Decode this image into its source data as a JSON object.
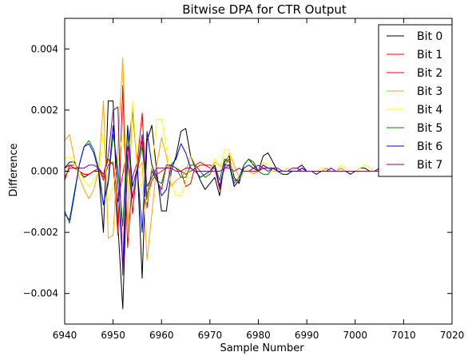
{
  "chart_data": {
    "type": "line",
    "title": "Bitwise DPA for CTR Output",
    "xlabel": "Sample Number",
    "ylabel": "Difference",
    "xlim": [
      6940,
      7020
    ],
    "ylim": [
      -0.005,
      0.005
    ],
    "xticks": [
      6940,
      6950,
      6960,
      6970,
      6980,
      6990,
      7000,
      7010,
      7020
    ],
    "xtick_labels": [
      "6940",
      "6950",
      "6960",
      "6970",
      "6980",
      "6990",
      "7000",
      "7010",
      "7020"
    ],
    "yticks": [
      -0.004,
      -0.002,
      0.0,
      0.002,
      0.004
    ],
    "ytick_labels": [
      "−0.004",
      "−0.002",
      "0.000",
      "0.002",
      "0.004"
    ],
    "grid": false,
    "legend_position": "top-right",
    "x": [
      6940,
      6941,
      6942,
      6943,
      6944,
      6945,
      6946,
      6947,
      6948,
      6949,
      6950,
      6951,
      6952,
      6953,
      6954,
      6955,
      6956,
      6957,
      6958,
      6959,
      6960,
      6961,
      6962,
      6963,
      6964,
      6965,
      6966,
      6967,
      6968,
      6969,
      6970,
      6971,
      6972,
      6973,
      6974,
      6975,
      6976,
      6977,
      6978,
      6979,
      6980,
      6981,
      6982,
      6983,
      6984,
      6985,
      6986,
      6987,
      6988,
      6989,
      6990,
      6991,
      6992,
      6993,
      6994,
      6995,
      6996,
      6997,
      6998,
      6999,
      7000,
      7001,
      7002,
      7003,
      7004,
      7005,
      7006,
      7007,
      7008,
      7009,
      7010,
      7011,
      7012,
      7013,
      7014,
      7015,
      7016,
      7017,
      7018,
      7019
    ],
    "series": [
      {
        "name": "Bit 0",
        "color": "#000000",
        "values": [
          0.0001,
          0.0003,
          0.0003,
          0.0,
          -0.0002,
          -0.0001,
          0.0,
          0.0,
          -0.002,
          0.0023,
          0.0023,
          -0.0018,
          -0.0045,
          0.0005,
          0.002,
          0.0002,
          -0.0035,
          0.001,
          0.0015,
          0.0,
          -0.0013,
          -0.0013,
          0.0,
          0.0005,
          0.0013,
          0.0014,
          0.0005,
          0.0001,
          -0.0003,
          -0.0006,
          -0.0004,
          -0.0002,
          -0.0008,
          0.0003,
          0.0005,
          -0.0002,
          -0.0004,
          0.0002,
          0.0004,
          0.0002,
          0.0,
          0.0005,
          0.0006,
          0.0003,
          0.0,
          -0.0001,
          -0.0001,
          0.0,
          0.0001,
          0.0002,
          0.0,
          0.0,
          -0.0001,
          0.0,
          0.0001,
          0.0,
          0.0,
          0.0001,
          0.0,
          -0.0001,
          0.0,
          0.0001,
          0.0001,
          0.0,
          0.0,
          0.0001,
          0.0,
          0.0,
          0.0,
          0.0001,
          0.0,
          0.0,
          0.0001,
          0.0,
          0.0,
          0.0,
          0.0,
          0.0001,
          0.0,
          0.0
        ]
      },
      {
        "name": "Bit 1",
        "color": "#ff0000",
        "values": [
          -0.0002,
          0.0001,
          0.0001,
          0.0,
          -0.0001,
          -0.0001,
          0.0,
          0.0001,
          -0.0002,
          0.0004,
          0.0002,
          -0.001,
          -0.0001,
          0.0008,
          -0.0014,
          0.0002,
          0.001,
          -0.0009,
          -0.0003,
          -0.0001,
          0.0,
          0.0001,
          0.0002,
          0.0001,
          0.0,
          -0.0001,
          0.0,
          0.0001,
          0.0002,
          0.0002,
          0.0002,
          0.0001,
          -0.0005,
          0.0001,
          0.0002,
          -0.0003,
          -0.0003,
          0.0,
          0.0,
          0.0,
          0.0,
          0.0001,
          0.0001,
          0.0001,
          0.0,
          0.0,
          0.0001,
          0.0,
          0.0,
          0.0,
          0.0,
          0.0,
          0.0,
          0.0,
          0.0,
          0.0,
          0.0,
          0.0,
          0.0,
          0.0,
          0.0,
          0.0,
          0.0,
          0.0,
          0.0,
          0.0,
          0.0,
          0.0,
          0.0,
          0.0,
          0.0,
          0.0,
          0.0,
          0.0,
          0.0,
          0.0,
          0.0,
          0.0,
          0.0,
          0.0
        ]
      },
      {
        "name": "Bit 2",
        "color": "#e60000",
        "values": [
          -0.0003,
          0.0002,
          0.0002,
          0.0,
          -0.0001,
          -0.0001,
          0.0,
          0.0001,
          -0.0003,
          0.0002,
          0.0003,
          -0.0021,
          0.0028,
          -0.0025,
          -0.0002,
          0.0003,
          0.0019,
          -0.0012,
          0.0001,
          -0.0003,
          -0.0006,
          0.0002,
          0.0002,
          0.0001,
          0.0,
          -0.0005,
          -0.0004,
          0.0002,
          0.0003,
          0.0002,
          0.0001,
          0.0001,
          -0.0006,
          0.0002,
          0.0004,
          -0.0005,
          -0.0003,
          0.0,
          0.0,
          0.0001,
          0.0,
          0.0001,
          0.0001,
          0.0001,
          0.0,
          0.0,
          0.0,
          0.0,
          0.0,
          0.0001,
          0.0,
          0.0,
          0.0,
          0.0,
          0.0,
          0.0,
          0.0,
          0.0,
          0.0,
          0.0,
          0.0,
          0.0,
          0.0,
          0.0,
          0.0,
          0.0,
          0.0,
          0.0,
          0.0,
          0.0,
          0.0,
          0.0,
          0.0,
          0.0,
          0.0,
          0.0,
          0.0,
          0.0,
          0.0,
          0.0
        ]
      },
      {
        "name": "Bit 3",
        "color": "#ffa500",
        "values": [
          0.001,
          0.0012,
          0.0004,
          -0.0002,
          -0.0006,
          -0.0009,
          -0.0006,
          0.0,
          0.0023,
          -0.0022,
          -0.0021,
          0.0008,
          0.0037,
          -0.002,
          0.0022,
          0.0,
          0.0003,
          -0.0029,
          -0.0014,
          0.0002,
          0.0011,
          0.0005,
          -0.0005,
          -0.0003,
          -0.0002,
          0.0,
          0.0005,
          0.0002,
          0.0,
          0.0,
          0.0,
          0.0003,
          0.0002,
          0.0001,
          0.0006,
          0.0002,
          -0.0002,
          0.0,
          0.0,
          -0.0001,
          0.0,
          0.0002,
          0.0001,
          0.0,
          0.0,
          0.0,
          0.0,
          0.0,
          0.0001,
          0.0,
          0.0,
          0.0,
          0.0,
          0.0,
          0.0001,
          0.0,
          0.0,
          0.0001,
          0.0,
          0.0,
          0.0,
          0.0,
          0.0,
          0.0,
          0.0,
          0.0,
          0.0,
          0.0,
          0.0,
          0.0,
          0.0,
          0.0,
          0.0,
          0.0,
          0.0,
          0.0,
          0.0,
          0.0,
          0.0,
          0.0
        ]
      },
      {
        "name": "Bit 4",
        "color": "#ffff00",
        "values": [
          0.0004,
          0.0005,
          0.0002,
          0.0,
          -0.0003,
          -0.0005,
          -0.0003,
          0.0,
          0.0012,
          -0.001,
          -0.0005,
          0.0004,
          0.0012,
          -0.0007,
          0.0023,
          0.0003,
          -0.0007,
          -0.001,
          0.0,
          0.0017,
          0.0017,
          0.0008,
          -0.0004,
          -0.0008,
          -0.0008,
          -0.0004,
          0.0002,
          0.0002,
          0.0,
          -0.0002,
          0.0,
          0.0004,
          0.0001,
          0.0007,
          0.0007,
          -0.0004,
          -0.0003,
          0.0,
          0.0001,
          0.0003,
          0.0,
          0.0003,
          0.0002,
          0.0001,
          0.0,
          0.0,
          0.0001,
          0.0,
          0.0001,
          0.0,
          0.0,
          0.0,
          0.0,
          0.0001,
          0.0,
          0.0001,
          0.0,
          0.0002,
          0.0001,
          0.0,
          0.0,
          0.0001,
          0.0002,
          0.0001,
          0.0,
          0.0,
          0.0,
          0.0,
          0.0001,
          0.0,
          0.0,
          0.0,
          0.0,
          0.0,
          0.0001,
          0.0,
          0.0,
          0.0,
          0.0,
          0.0
        ]
      },
      {
        "name": "Bit 5",
        "color": "#008000",
        "values": [
          -0.0013,
          -0.0017,
          -0.0008,
          0.0002,
          0.0008,
          0.001,
          0.0007,
          0.0001,
          -0.0011,
          -0.0004,
          0.0012,
          0.0001,
          -0.0018,
          0.0014,
          -0.0009,
          0.0,
          0.0008,
          -0.0008,
          0.0,
          -0.0003,
          -0.0004,
          0.0002,
          0.0002,
          0.0001,
          -0.0002,
          -0.0002,
          0.0002,
          0.0002,
          0.0,
          -0.0002,
          -0.0001,
          0.0002,
          -0.0003,
          0.0004,
          0.0003,
          -0.0004,
          -0.0002,
          0.0002,
          0.0004,
          0.0003,
          0.0,
          -0.0001,
          -0.0001,
          0.0001,
          0.0,
          0.0,
          0.0,
          0.0,
          0.0,
          0.0001,
          0.0,
          0.0,
          0.0,
          0.0,
          0.0,
          0.0,
          0.0,
          0.0,
          0.0,
          0.0,
          0.0,
          0.0,
          0.0,
          0.0,
          0.0,
          0.0,
          0.0,
          0.0,
          0.0,
          0.0,
          0.0,
          0.0,
          0.0,
          0.0,
          0.0,
          0.0,
          0.0,
          0.0,
          0.0,
          0.0
        ]
      },
      {
        "name": "Bit 6",
        "color": "#0000ff",
        "values": [
          -0.0014,
          -0.0016,
          -0.0007,
          0.0002,
          0.0008,
          0.0009,
          0.0006,
          0.0,
          -0.0011,
          -0.0003,
          0.0015,
          -0.0004,
          -0.0031,
          0.0015,
          -0.0005,
          0.0001,
          -0.002,
          0.0013,
          0.0002,
          -0.0002,
          -0.0008,
          -0.0006,
          0.0002,
          0.0004,
          0.0009,
          0.0006,
          0.0001,
          0.0,
          -0.0002,
          -0.0001,
          0.0,
          0.0002,
          -0.0005,
          0.0002,
          0.0002,
          -0.0005,
          -0.0003,
          0.0001,
          0.0002,
          0.0001,
          0.0,
          0.0002,
          0.0001,
          0.0001,
          0.0,
          0.0,
          0.0,
          0.0,
          0.0,
          0.0001,
          0.0,
          0.0,
          0.0,
          0.0,
          0.0,
          0.0001,
          0.0,
          0.0,
          0.0,
          0.0,
          0.0,
          0.0,
          0.0,
          0.0,
          0.0,
          0.0,
          0.0,
          0.0,
          0.0,
          0.0,
          0.0,
          0.0,
          0.0,
          0.0,
          0.0,
          0.0,
          0.0,
          0.0,
          0.0,
          0.0
        ]
      },
      {
        "name": "Bit 7",
        "color": "#800080",
        "values": [
          0.0001,
          0.0002,
          0.0001,
          0.0001,
          0.0001,
          0.0002,
          0.0002,
          0.0001,
          -0.0001,
          0.0005,
          0.002,
          0.0021,
          -0.0034,
          0.0003,
          -0.0009,
          0.0001,
          0.0012,
          -0.0005,
          -0.0002,
          0.0001,
          0.0001,
          0.0001,
          0.0001,
          0.0,
          0.0,
          0.0001,
          0.0001,
          0.0,
          0.0,
          0.0,
          0.0,
          0.0,
          0.0,
          0.0001,
          0.0001,
          0.0,
          0.0001,
          0.0,
          0.0,
          0.0001,
          0.0002,
          0.0001,
          0.0,
          0.0001,
          0.0001,
          0.0,
          0.0,
          0.0001,
          0.0001,
          0.0,
          0.0,
          0.0,
          0.0,
          0.0,
          0.0,
          0.0,
          0.0,
          0.0,
          0.0,
          0.0,
          0.0,
          0.0,
          0.0,
          0.0,
          0.0,
          0.0,
          0.0,
          0.0,
          0.0,
          0.0,
          0.0,
          0.0,
          0.0,
          0.0,
          0.0,
          0.0,
          0.0,
          0.0,
          0.0,
          0.0
        ]
      }
    ]
  }
}
